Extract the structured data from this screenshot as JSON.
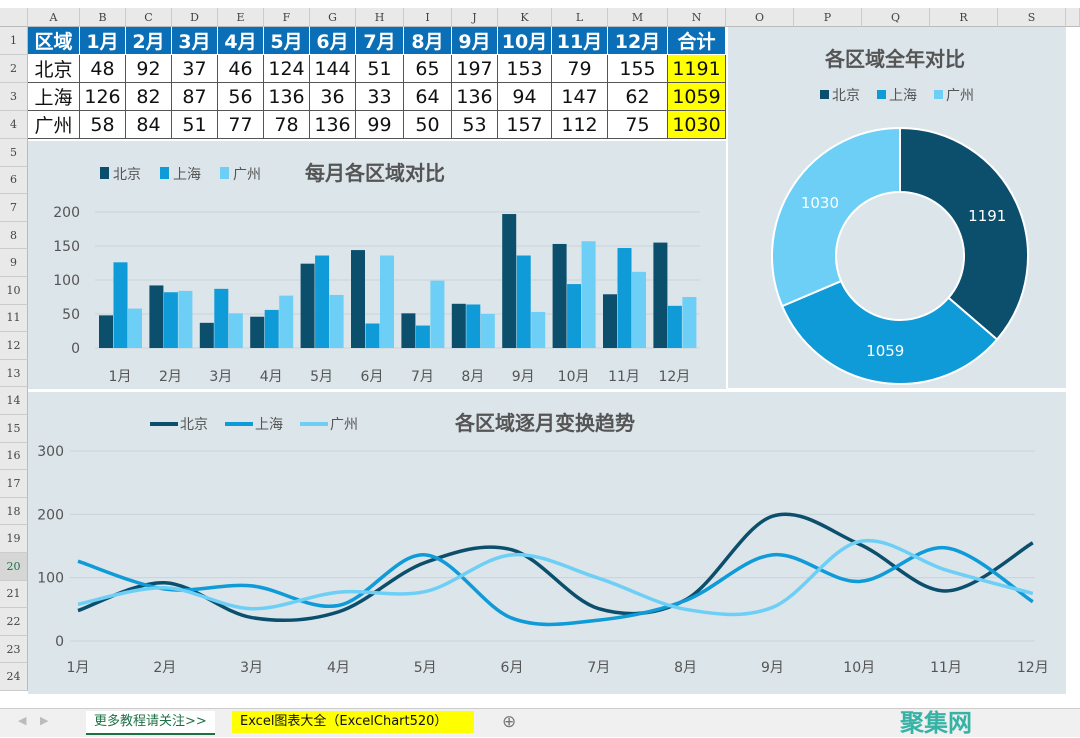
{
  "columns": [
    "A",
    "B",
    "C",
    "D",
    "E",
    "F",
    "G",
    "H",
    "I",
    "J",
    "K",
    "L",
    "M",
    "N",
    "O",
    "P",
    "Q",
    "R",
    "S"
  ],
  "rows": [
    "1",
    "2",
    "3",
    "4",
    "5",
    "6",
    "7",
    "8",
    "9",
    "10",
    "11",
    "12",
    "13",
    "14",
    "15",
    "16",
    "17",
    "18",
    "19",
    "20",
    "21",
    "22",
    "23",
    "24"
  ],
  "table": {
    "header": [
      "区域",
      "1月",
      "2月",
      "3月",
      "4月",
      "5月",
      "6月",
      "7月",
      "8月",
      "9月",
      "10月",
      "11月",
      "12月",
      "合计"
    ],
    "rows": [
      [
        "北京",
        "48",
        "92",
        "37",
        "46",
        "124",
        "144",
        "51",
        "65",
        "197",
        "153",
        "79",
        "155",
        "1191"
      ],
      [
        "上海",
        "126",
        "82",
        "87",
        "56",
        "136",
        "36",
        "33",
        "64",
        "136",
        "94",
        "147",
        "62",
        "1059"
      ],
      [
        "广州",
        "58",
        "84",
        "51",
        "77",
        "78",
        "136",
        "99",
        "50",
        "53",
        "157",
        "112",
        "75",
        "1030"
      ]
    ]
  },
  "colors": {
    "北京": "#0b4f6c",
    "上海": "#0f9ad8",
    "广州": "#6dcff6",
    "chart_bg": "#dbe5ea",
    "header": "#0b6fb7",
    "total": "#ffff00"
  },
  "chart_data": [
    {
      "type": "bar",
      "title": "每月各区域对比",
      "categories": [
        "1月",
        "2月",
        "3月",
        "4月",
        "5月",
        "6月",
        "7月",
        "8月",
        "9月",
        "10月",
        "11月",
        "12月"
      ],
      "series": [
        {
          "name": "北京",
          "values": [
            48,
            92,
            37,
            46,
            124,
            144,
            51,
            65,
            197,
            153,
            79,
            155
          ]
        },
        {
          "name": "上海",
          "values": [
            126,
            82,
            87,
            56,
            136,
            36,
            33,
            64,
            136,
            94,
            147,
            62
          ]
        },
        {
          "name": "广州",
          "values": [
            58,
            84,
            51,
            77,
            78,
            136,
            99,
            50,
            53,
            157,
            112,
            75
          ]
        }
      ],
      "yticks": [
        "0",
        "50",
        "100",
        "150",
        "200"
      ],
      "ylim": [
        0,
        200
      ],
      "legend": "top-left"
    },
    {
      "type": "pie",
      "title": "各区域全年对比",
      "labels": [
        "北京",
        "上海",
        "广州"
      ],
      "values": [
        1191,
        1059,
        1030
      ],
      "value_labels": [
        "1191",
        "1059",
        "1030"
      ],
      "donut": true,
      "legend": "top"
    },
    {
      "type": "line",
      "title": "各区域逐月变换趋势",
      "categories": [
        "1月",
        "2月",
        "3月",
        "4月",
        "5月",
        "6月",
        "7月",
        "8月",
        "9月",
        "10月",
        "11月",
        "12月"
      ],
      "series": [
        {
          "name": "北京",
          "values": [
            48,
            92,
            37,
            46,
            124,
            144,
            51,
            65,
            197,
            153,
            79,
            155
          ]
        },
        {
          "name": "上海",
          "values": [
            126,
            82,
            87,
            56,
            136,
            36,
            33,
            64,
            136,
            94,
            147,
            62
          ]
        },
        {
          "name": "广州",
          "values": [
            58,
            84,
            51,
            77,
            78,
            136,
            99,
            50,
            53,
            157,
            112,
            75
          ]
        }
      ],
      "yticks": [
        "0",
        "100",
        "200",
        "300"
      ],
      "ylim": [
        0,
        300
      ],
      "smooth": true,
      "legend": "top-left"
    }
  ],
  "tabs": {
    "tab1": "更多教程请关注>>",
    "tab2": "Excel图表大全（ExcelChart520）",
    "add": "⊕"
  },
  "watermark": "聚集网"
}
